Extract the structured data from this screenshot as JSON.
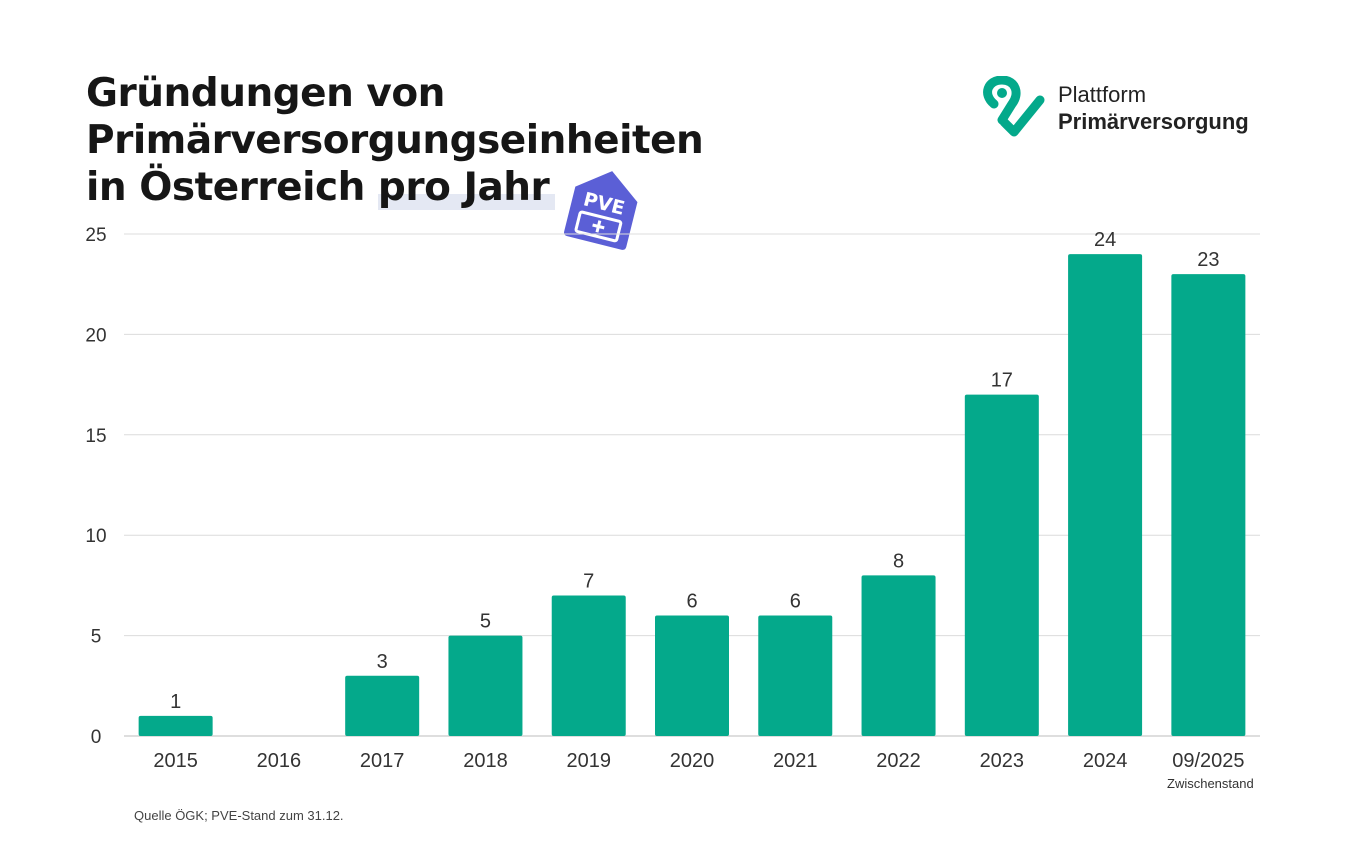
{
  "title": {
    "line1": "Gründungen von",
    "line2": "Primärversorgungseinheiten",
    "line3_a": "in Österreich ",
    "line3_b": "pro Jahr"
  },
  "badge": {
    "text": "PVE",
    "icon": "pve-house-plus-icon",
    "color": "#5b5fd6"
  },
  "logo": {
    "icon": "pv-check-logo-icon",
    "line1": "Plattform",
    "line2": "Primärversorgung",
    "color": "#04a98b"
  },
  "source": "Quelle ÖGK; PVE-Stand zum 31.12.",
  "chart_data": {
    "type": "bar",
    "categories": [
      "2015",
      "2016",
      "2017",
      "2018",
      "2019",
      "2020",
      "2021",
      "2022",
      "2023",
      "2024",
      "09/2025"
    ],
    "category_notes": {
      "09/2025": "Zwischenstand"
    },
    "values": [
      1,
      0,
      3,
      5,
      7,
      6,
      6,
      8,
      17,
      24,
      23
    ],
    "data_labels": [
      "1",
      "",
      "3",
      "5",
      "7",
      "6",
      "6",
      "8",
      "17",
      "24",
      "23"
    ],
    "yticks": [
      0,
      5,
      10,
      15,
      20,
      25
    ],
    "ylim": [
      0,
      25
    ],
    "grid": true,
    "bar_color": "#04a98b"
  }
}
